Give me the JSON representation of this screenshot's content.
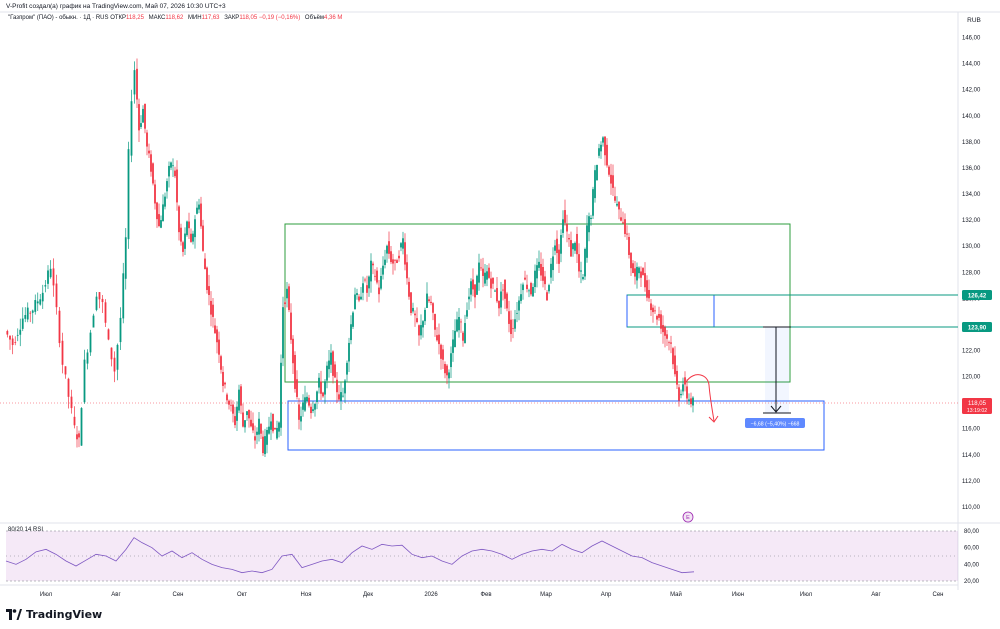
{
  "caption": "V-Profit создал(а) график на TradingView.com, Май 07, 2026 10:30 UTC+3",
  "legend": {
    "symbol": "\"Газпром\" (ПАО) - обыкн. · 1Д · RUS",
    "items": [
      {
        "label": "ОТКР",
        "value": "118,25"
      },
      {
        "label": "МАКС",
        "value": "118,62"
      },
      {
        "label": "МИН",
        "value": "117,63"
      },
      {
        "label": "ЗАКР",
        "value": "118,05 −0,19 (−0,16%)"
      },
      {
        "label": "Объём",
        "value": "4,36 M"
      }
    ]
  },
  "rsi_label": "80/20 14 RSI",
  "brand": "TradingView",
  "chart_data": [
    {
      "type": "candlestick",
      "currency": "RUB",
      "ylim": [
        109,
        147.5
      ],
      "y_ticks": [
        "146,00",
        "144,00",
        "142,00",
        "140,00",
        "138,00",
        "136,00",
        "134,00",
        "132,00",
        "130,00",
        "128,00",
        "126,00",
        "124,00",
        "122,00",
        "120,00",
        "118,00",
        "116,00",
        "114,00",
        "112,00",
        "110,00"
      ],
      "x_ticks": [
        "Июл",
        "Авг",
        "Сен",
        "Окт",
        "Ноя",
        "Дек",
        "2026",
        "Фев",
        "Мар",
        "Апр",
        "Май",
        "Июн",
        "Июл",
        "Авг",
        "Сен"
      ],
      "points": [
        [
          0,
          123.5
        ],
        [
          8,
          122.5
        ],
        [
          18,
          124.5
        ],
        [
          28,
          125.2
        ],
        [
          38,
          126.5
        ],
        [
          46,
          128.5
        ],
        [
          52,
          125
        ],
        [
          58,
          121
        ],
        [
          64,
          118.5
        ],
        [
          70,
          116
        ],
        [
          74,
          115
        ],
        [
          80,
          121
        ],
        [
          86,
          123.5
        ],
        [
          92,
          126.5
        ],
        [
          98,
          125.5
        ],
        [
          104,
          122.5
        ],
        [
          110,
          120.5
        ],
        [
          116,
          124.5
        ],
        [
          121,
          130.5
        ],
        [
          124,
          137
        ],
        [
          127,
          141.5
        ],
        [
          130,
          143.6
        ],
        [
          134,
          139
        ],
        [
          138,
          140.5
        ],
        [
          142,
          137.5
        ],
        [
          146,
          136
        ],
        [
          150,
          133.5
        ],
        [
          154,
          131.5
        ],
        [
          158,
          133
        ],
        [
          162,
          135
        ],
        [
          166,
          136.5
        ],
        [
          170,
          135.5
        ],
        [
          174,
          131
        ],
        [
          178,
          129.5
        ],
        [
          182,
          132
        ],
        [
          186,
          130
        ],
        [
          190,
          132.2
        ],
        [
          194,
          133.5
        ],
        [
          198,
          129.5
        ],
        [
          202,
          127
        ],
        [
          206,
          125.2
        ],
        [
          210,
          123.5
        ],
        [
          214,
          122
        ],
        [
          218,
          119.5
        ],
        [
          222,
          118.5
        ],
        [
          226,
          117.5
        ],
        [
          230,
          116.5
        ],
        [
          234,
          119
        ],
        [
          238,
          116.2
        ],
        [
          242,
          117.5
        ],
        [
          246,
          116
        ],
        [
          250,
          115.2
        ],
        [
          254,
          116.5
        ],
        [
          258,
          114.5
        ],
        [
          262,
          115.5
        ],
        [
          266,
          117
        ],
        [
          270,
          115.5
        ],
        [
          274,
          116.5
        ],
        [
          278,
          125.5
        ],
        [
          282,
          126.5
        ],
        [
          286,
          123
        ],
        [
          290,
          119.5
        ],
        [
          294,
          116.5
        ],
        [
          298,
          117.8
        ],
        [
          302,
          118.5
        ],
        [
          306,
          117.5
        ],
        [
          310,
          118.2
        ],
        [
          314,
          119.5
        ],
        [
          318,
          118.5
        ],
        [
          322,
          120.5
        ],
        [
          326,
          121.5
        ],
        [
          330,
          119.5
        ],
        [
          334,
          118.5
        ],
        [
          338,
          118.5
        ],
        [
          342,
          121.5
        ],
        [
          346,
          124
        ],
        [
          350,
          126.5
        ],
        [
          354,
          125.5
        ],
        [
          358,
          127.5
        ],
        [
          362,
          126.5
        ],
        [
          366,
          128.5
        ],
        [
          370,
          127.8
        ],
        [
          374,
          126.5
        ],
        [
          378,
          128.5
        ],
        [
          382,
          130
        ],
        [
          386,
          129
        ],
        [
          390,
          128.5
        ],
        [
          394,
          129.5
        ],
        [
          398,
          130.5
        ],
        [
          402,
          127.5
        ],
        [
          406,
          125.2
        ],
        [
          410,
          124.5
        ],
        [
          414,
          123
        ],
        [
          418,
          124.5
        ],
        [
          422,
          126
        ],
        [
          426,
          125.5
        ],
        [
          430,
          123.5
        ],
        [
          434,
          122.5
        ],
        [
          438,
          121
        ],
        [
          442,
          120
        ],
        [
          446,
          121.5
        ],
        [
          450,
          123.5
        ],
        [
          454,
          124.5
        ],
        [
          458,
          123
        ],
        [
          462,
          125.5
        ],
        [
          466,
          127
        ],
        [
          470,
          126.5
        ],
        [
          474,
          128.5
        ],
        [
          478,
          127.5
        ],
        [
          482,
          128
        ],
        [
          486,
          127.2
        ],
        [
          490,
          126.5
        ],
        [
          494,
          125.5
        ],
        [
          498,
          127
        ],
        [
          502,
          125
        ],
        [
          506,
          123.5
        ],
        [
          510,
          124.5
        ],
        [
          514,
          125.8
        ],
        [
          518,
          127.5
        ],
        [
          522,
          127
        ],
        [
          526,
          126.5
        ],
        [
          530,
          127.8
        ],
        [
          534,
          128.5
        ],
        [
          538,
          127.5
        ],
        [
          542,
          126.2
        ],
        [
          546,
          128.5
        ],
        [
          550,
          130.5
        ],
        [
          554,
          129
        ],
        [
          558,
          132.5
        ],
        [
          562,
          131
        ],
        [
          566,
          129.5
        ],
        [
          570,
          130.5
        ],
        [
          574,
          128
        ],
        [
          578,
          127.5
        ],
        [
          582,
          131.5
        ],
        [
          586,
          132.5
        ],
        [
          590,
          135.5
        ],
        [
          594,
          137.5
        ],
        [
          598,
          138.2
        ],
        [
          602,
          136.5
        ],
        [
          606,
          135
        ],
        [
          610,
          133.5
        ],
        [
          614,
          132.5
        ],
        [
          618,
          132
        ],
        [
          622,
          130.5
        ],
        [
          626,
          128.5
        ],
        [
          630,
          127.5
        ],
        [
          634,
          128.5
        ],
        [
          638,
          127.5
        ],
        [
          642,
          126.5
        ],
        [
          646,
          125.5
        ],
        [
          650,
          124.8
        ],
        [
          654,
          124.5
        ],
        [
          658,
          123.5
        ],
        [
          662,
          123
        ],
        [
          666,
          122.5
        ],
        [
          670,
          120
        ],
        [
          674,
          118.5
        ],
        [
          678,
          119.5
        ],
        [
          682,
          118.5
        ],
        [
          686,
          118.1
        ],
        [
          688,
          118.05
        ]
      ],
      "lines": [
        {
          "name": "126,42",
          "value": 126.42,
          "color": "#089981"
        },
        {
          "name": "123,90",
          "value": 123.9,
          "color": "#089981"
        },
        {
          "name": "118,05",
          "value": 118.05,
          "color": "#f23645",
          "sublabel": "13:19:02"
        }
      ],
      "measure_label": "−6,68 (−5,40%) −668"
    },
    {
      "type": "line",
      "name": "RSI",
      "ylim": [
        15,
        85
      ],
      "y_ticks": [
        "80,00",
        "60,00",
        "40,00",
        "20,00"
      ],
      "points": [
        [
          0,
          44
        ],
        [
          10,
          40
        ],
        [
          20,
          46
        ],
        [
          30,
          55
        ],
        [
          40,
          58
        ],
        [
          50,
          52
        ],
        [
          60,
          44
        ],
        [
          70,
          38
        ],
        [
          80,
          45
        ],
        [
          90,
          52
        ],
        [
          100,
          50
        ],
        [
          110,
          44
        ],
        [
          120,
          58
        ],
        [
          128,
          72
        ],
        [
          136,
          66
        ],
        [
          146,
          60
        ],
        [
          156,
          50
        ],
        [
          166,
          56
        ],
        [
          176,
          48
        ],
        [
          186,
          54
        ],
        [
          196,
          46
        ],
        [
          206,
          40
        ],
        [
          216,
          36
        ],
        [
          226,
          34
        ],
        [
          236,
          30
        ],
        [
          246,
          32
        ],
        [
          256,
          30
        ],
        [
          266,
          34
        ],
        [
          276,
          50
        ],
        [
          286,
          52
        ],
        [
          296,
          36
        ],
        [
          306,
          40
        ],
        [
          316,
          44
        ],
        [
          326,
          46
        ],
        [
          336,
          42
        ],
        [
          346,
          54
        ],
        [
          356,
          62
        ],
        [
          366,
          58
        ],
        [
          376,
          64
        ],
        [
          386,
          62
        ],
        [
          396,
          63
        ],
        [
          406,
          52
        ],
        [
          416,
          48
        ],
        [
          426,
          50
        ],
        [
          436,
          44
        ],
        [
          446,
          40
        ],
        [
          456,
          50
        ],
        [
          466,
          56
        ],
        [
          476,
          58
        ],
        [
          486,
          56
        ],
        [
          496,
          52
        ],
        [
          506,
          46
        ],
        [
          516,
          52
        ],
        [
          526,
          56
        ],
        [
          536,
          58
        ],
        [
          546,
          56
        ],
        [
          556,
          64
        ],
        [
          566,
          58
        ],
        [
          576,
          54
        ],
        [
          586,
          62
        ],
        [
          596,
          68
        ],
        [
          606,
          62
        ],
        [
          616,
          56
        ],
        [
          626,
          50
        ],
        [
          636,
          48
        ],
        [
          646,
          42
        ],
        [
          656,
          38
        ],
        [
          666,
          34
        ],
        [
          676,
          30
        ],
        [
          688,
          31
        ]
      ]
    }
  ]
}
